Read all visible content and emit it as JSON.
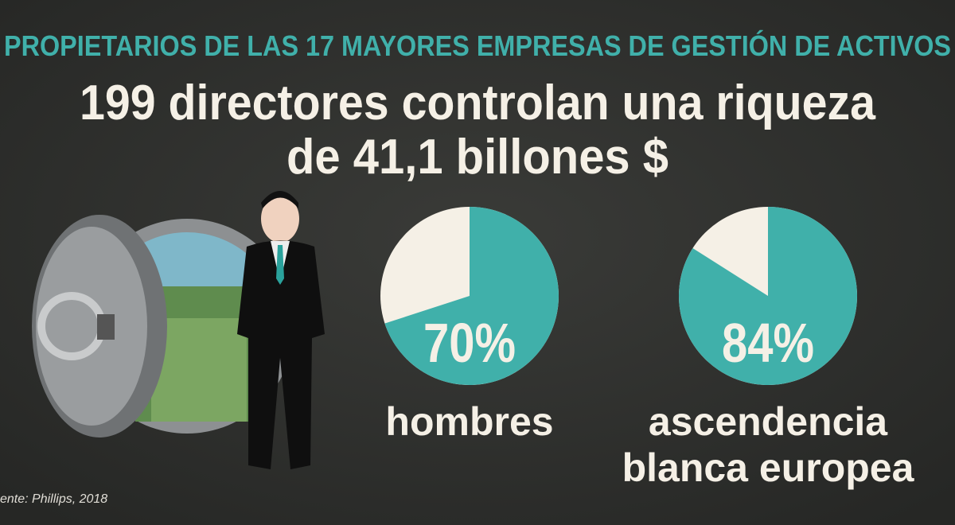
{
  "header": {
    "kicker": "PROPIETARIOS DE LAS 17 MAYORES EMPRESAS DE GESTIÓN DE ACTIVOS",
    "title": [
      "199 directores controlan una riqueza",
      "de 41,1 billones $"
    ]
  },
  "pies": [
    {
      "value": 70,
      "value_label": "70%",
      "label": [
        "hombres"
      ]
    },
    {
      "value": 84,
      "value_label": "84%",
      "label": [
        "ascendencia",
        "blanca europea"
      ]
    }
  ],
  "colors": {
    "share": "#40b0aa",
    "rest": "#f5f0e6"
  },
  "source": "ente: Phillips, 2018"
}
